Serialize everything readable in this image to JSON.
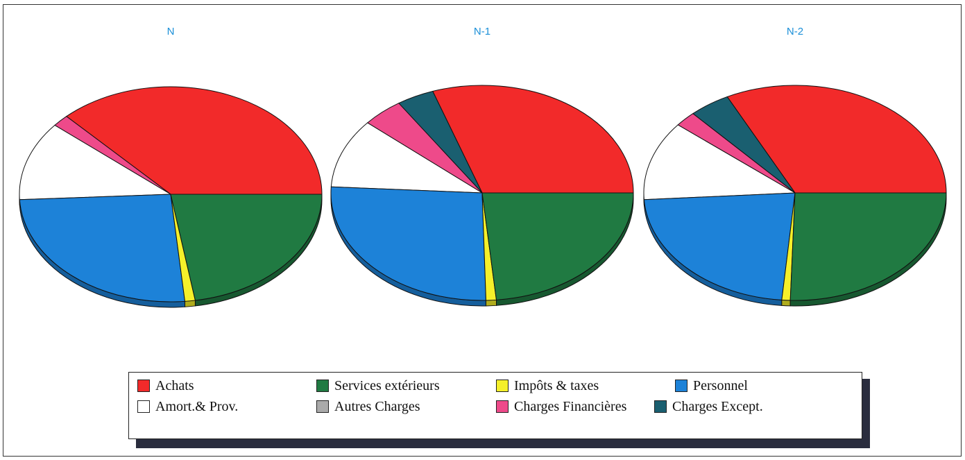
{
  "chart_data": [
    {
      "type": "pie",
      "title": "N",
      "slices": [
        {
          "label": "Achats",
          "value": 37.1,
          "color": "#f22a2a"
        },
        {
          "label": "Charges Financières",
          "value": 1.8,
          "color": "#ee4a8a"
        },
        {
          "label": "Charges Except.",
          "value": 0,
          "color": "#1a5f70"
        },
        {
          "label": "Amort.& Prov.",
          "value": 11.9,
          "color": "#ffffff"
        },
        {
          "label": "Personnel",
          "value": 25.7,
          "color": "#1d82d8"
        },
        {
          "label": "Impôts & taxes",
          "value": 1.1,
          "color": "#f5f02a"
        },
        {
          "label": "Autres Charges",
          "value": 0,
          "color": "#aaaaaa"
        },
        {
          "label": "Services extérieurs",
          "value": 22.4,
          "color": "#207a42"
        }
      ]
    },
    {
      "type": "pie",
      "title": "N-1",
      "slices": [
        {
          "label": "Achats",
          "value": 30.3,
          "color": "#f22a2a"
        },
        {
          "label": "Charges Except.",
          "value": 4.0,
          "color": "#1a5f70"
        },
        {
          "label": "Charges Financières",
          "value": 4.4,
          "color": "#ee4a8a"
        },
        {
          "label": "Amort.& Prov.",
          "value": 10.4,
          "color": "#ffffff"
        },
        {
          "label": "Personnel",
          "value": 26.3,
          "color": "#1d82d8"
        },
        {
          "label": "Impôts & taxes",
          "value": 1.1,
          "color": "#f5f02a"
        },
        {
          "label": "Autres Charges",
          "value": 0,
          "color": "#aaaaaa"
        },
        {
          "label": "Services extérieurs",
          "value": 23.5,
          "color": "#207a42"
        }
      ]
    },
    {
      "type": "pie",
      "title": "N-2",
      "slices": [
        {
          "label": "Achats",
          "value": 32.4,
          "color": "#f22a2a"
        },
        {
          "label": "Charges Except.",
          "value": 4.4,
          "color": "#1a5f70"
        },
        {
          "label": "Charges Financières",
          "value": 2.3,
          "color": "#ee4a8a"
        },
        {
          "label": "Amort.& Prov.",
          "value": 11.9,
          "color": "#ffffff"
        },
        {
          "label": "Personnel",
          "value": 22.6,
          "color": "#1d82d8"
        },
        {
          "label": "Impôts & taxes",
          "value": 0.9,
          "color": "#f5f02a"
        },
        {
          "label": "Autres Charges",
          "value": 0,
          "color": "#aaaaaa"
        },
        {
          "label": "Services extérieurs",
          "value": 25.5,
          "color": "#207a42"
        }
      ]
    }
  ],
  "legend": {
    "items": [
      {
        "label": "Achats",
        "color": "#f22a2a"
      },
      {
        "label": "Services extérieurs",
        "color": "#207a42"
      },
      {
        "label": "Impôts & taxes",
        "color": "#f5f02a"
      },
      {
        "label": "Personnel",
        "color": "#1d82d8"
      },
      {
        "label": "Amort.& Prov.",
        "color": "#ffffff"
      },
      {
        "label": "Autres Charges",
        "color": "#aaaaaa"
      },
      {
        "label": "Charges Financières",
        "color": "#ee4a8a"
      },
      {
        "label": "Charges Except.",
        "color": "#1a5f70"
      }
    ]
  }
}
